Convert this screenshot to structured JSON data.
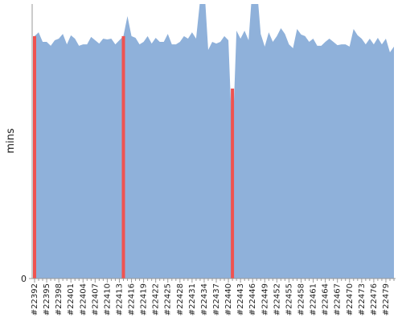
{
  "chart_data": {
    "type": "area",
    "ylabel": "mins",
    "categories": [
      "#22392",
      null,
      null,
      "#22395",
      null,
      null,
      "#22398",
      null,
      null,
      "#22401",
      null,
      null,
      "#22404",
      null,
      null,
      "#22407",
      null,
      null,
      "#22410",
      null,
      null,
      "#22413",
      null,
      null,
      "#22416",
      null,
      null,
      "#22419",
      null,
      null,
      "#22422",
      null,
      null,
      "#22425",
      null,
      null,
      "#22428",
      null,
      null,
      "#22431",
      null,
      null,
      "#22434",
      null,
      null,
      "#22437",
      null,
      null,
      "#22440",
      null,
      null,
      "#22443",
      null,
      null,
      "#22446",
      null,
      null,
      "#22449",
      null,
      null,
      "#22452",
      null,
      null,
      "#22455",
      null,
      null,
      "#22458",
      null,
      null,
      "#22461",
      null,
      null,
      "#22464",
      null,
      null,
      "#22467",
      null,
      null,
      "#22470",
      null,
      null,
      "#22473",
      null,
      null,
      "#22476",
      null,
      null,
      "#22479",
      null,
      null
    ],
    "series": [
      {
        "color": "#8fb1da",
        "values": [
          88.3,
          89.7,
          86.2,
          86.2,
          84.8,
          86.8,
          87.4,
          89.1,
          85.3,
          88.6,
          87.4,
          84.8,
          85.3,
          85.3,
          88.0,
          86.8,
          85.6,
          87.4,
          87.1,
          87.4,
          85.3,
          86.8,
          88.3,
          95.6,
          88.3,
          87.7,
          85.3,
          86.2,
          88.3,
          85.6,
          87.7,
          86.2,
          86.2,
          89.1,
          85.3,
          85.3,
          86.2,
          88.3,
          87.4,
          89.7,
          87.4,
          101.5,
          107.3,
          83.3,
          86.2,
          85.6,
          86.2,
          88.3,
          86.8,
          48.7,
          90.3,
          87.4,
          90.3,
          86.8,
          107.3,
          107.3,
          89.1,
          84.5,
          89.7,
          86.2,
          88.3,
          91.2,
          89.1,
          85.3,
          83.9,
          90.9,
          88.9,
          88.3,
          86.2,
          87.4,
          84.8,
          84.8,
          86.2,
          87.4,
          86.2,
          85.0,
          85.3,
          85.3,
          84.5,
          90.9,
          88.6,
          87.4,
          85.3,
          87.4,
          85.3,
          87.7,
          85.3,
          87.4,
          82.4,
          84.5
        ]
      },
      {
        "type": "bar",
        "color": "#ef5350",
        "values": [
          88.3,
          null,
          null,
          null,
          null,
          null,
          null,
          null,
          null,
          null,
          null,
          null,
          null,
          null,
          null,
          null,
          null,
          null,
          null,
          null,
          null,
          null,
          88.3,
          null,
          null,
          null,
          null,
          null,
          null,
          null,
          null,
          null,
          null,
          null,
          null,
          null,
          null,
          null,
          null,
          null,
          null,
          null,
          null,
          null,
          null,
          null,
          null,
          null,
          null,
          69.2,
          null,
          null,
          null,
          null,
          null,
          null,
          null,
          null,
          null,
          null,
          null,
          null,
          null,
          null,
          null,
          null,
          null,
          null,
          null,
          null,
          null,
          null,
          null,
          null,
          null,
          null,
          null,
          null,
          null,
          null,
          null,
          null,
          null,
          null,
          null,
          null,
          null,
          null,
          null,
          null
        ]
      }
    ],
    "ylim": [
      0,
      100
    ],
    "yticks": [
      0
    ]
  }
}
